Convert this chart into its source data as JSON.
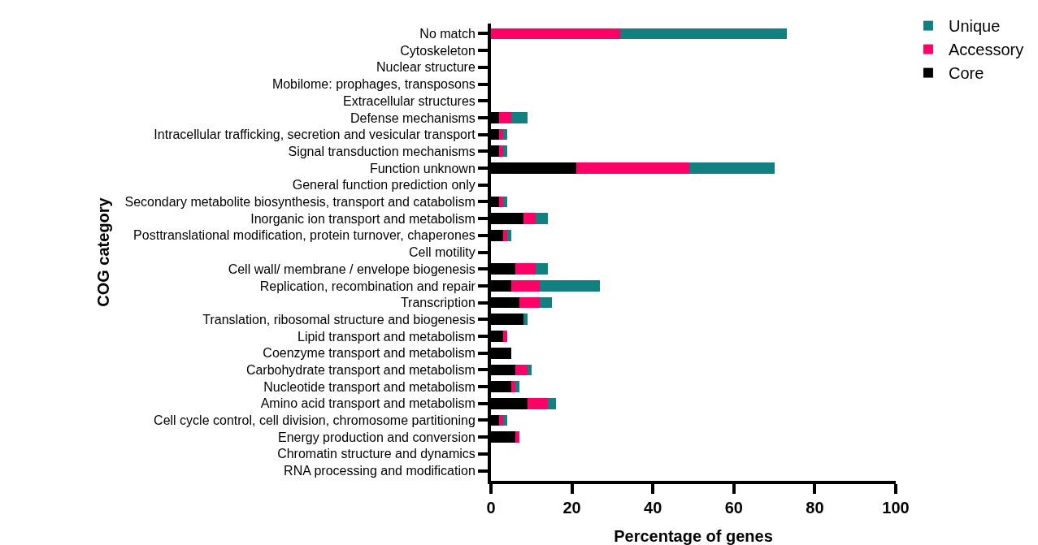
{
  "chart_data": {
    "type": "bar",
    "orientation": "horizontal",
    "stacked": true,
    "xlabel": "Percentage of genes",
    "ylabel": "COG category",
    "categories": [
      "No match",
      "Cytoskeleton",
      "Nuclear structure",
      "Mobilome: prophages, transposons",
      "Extracellular structures",
      "Defense mechanisms",
      "Intracellular trafficking, secretion and vesicular transport",
      "Signal transduction mechanisms",
      "Function unknown",
      "General function prediction only",
      "Secondary metabolite biosynthesis, transport and catabolism",
      "Inorganic ion transport and metabolism",
      "Posttranslational modification, protein turnover, chaperones",
      "Cell motility",
      "Cell wall/ membrane / envelope biogenesis",
      "Replication, recombination and repair",
      "Transcription",
      "Translation, ribosomal structure and biogenesis",
      "Lipid transport and metabolism",
      "Coenzyme transport and metabolism",
      "Carbohydrate transport and metabolism",
      "Nucleotide transport and metabolism",
      "Amino acid transport and metabolism",
      "Cell cycle control, cell division, chromosome partitioning",
      "Energy production and conversion",
      "Chromatin structure and dynamics",
      "RNA processing and modification"
    ],
    "series": [
      {
        "name": "Core",
        "color": "#000000",
        "values": [
          0,
          0,
          0,
          0,
          0,
          2,
          2,
          2,
          21,
          0,
          2,
          8,
          3,
          0,
          6,
          5,
          7,
          8,
          3,
          5,
          6,
          5,
          9,
          2,
          6,
          0,
          0
        ]
      },
      {
        "name": "Accessory",
        "color": "#ff0066",
        "values": [
          32,
          0,
          0,
          0,
          0,
          3,
          1,
          1,
          28,
          0,
          1,
          3,
          1,
          0,
          5,
          7,
          5,
          0,
          1,
          0,
          3,
          1,
          5,
          1,
          1,
          0,
          0
        ]
      },
      {
        "name": "Unique",
        "color": "#128080",
        "values": [
          41,
          0,
          0,
          0,
          0,
          4,
          1,
          1,
          21,
          0,
          1,
          3,
          1,
          0,
          3,
          15,
          3,
          1,
          0,
          0,
          1,
          1,
          2,
          1,
          0,
          0,
          0
        ]
      }
    ],
    "xlim": [
      0,
      100
    ],
    "xticks": [
      0,
      20,
      40,
      60,
      80,
      100
    ],
    "grid": false,
    "legend": "top right"
  }
}
